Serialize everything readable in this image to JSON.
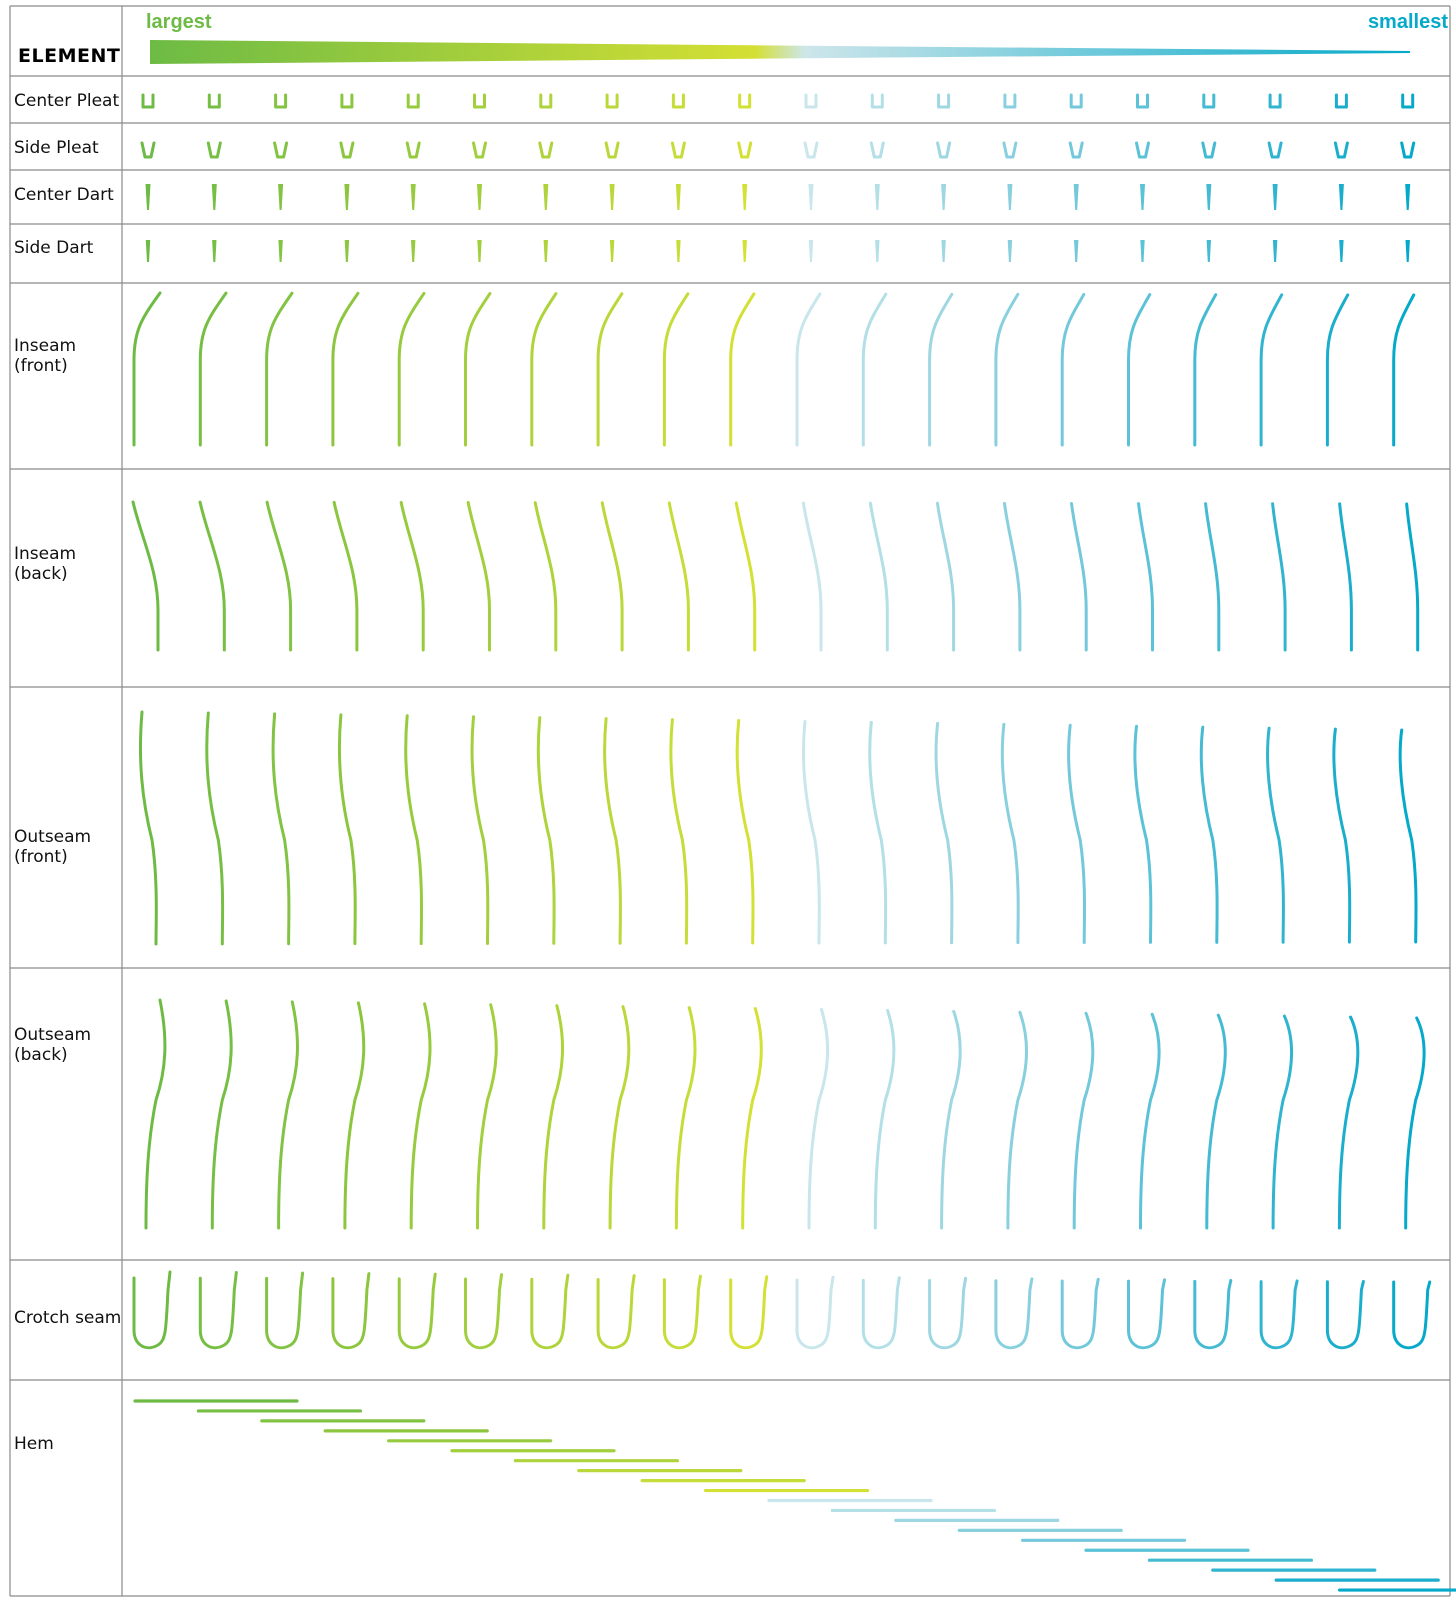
{
  "header": {
    "element_label": "ELEMENT",
    "largest_label": "largest",
    "smallest_label": "smallest"
  },
  "colors": {
    "largest": "#6dbb45",
    "smallest": "#05a9c9",
    "gradient_stops": [
      "#6dbb45",
      "#8cc63f",
      "#b6d63a",
      "#d4df33",
      "#cde6ea",
      "#a9dbe4",
      "#83ccdc",
      "#55bfd6",
      "#2cb3d2",
      "#05a9c9"
    ],
    "size_colors": [
      "#6dbb45",
      "#77bf44",
      "#82c343",
      "#8cc63f",
      "#97cb3e",
      "#a2cf3d",
      "#aed33b",
      "#bad83a",
      "#c6dc38",
      "#d3e034",
      "#c8e6eb",
      "#b3dfe7",
      "#9ed7e2",
      "#89d0de",
      "#73c9db",
      "#5cc2d7",
      "#45bbd3",
      "#30b4d0",
      "#1baecc",
      "#05a9c9"
    ]
  },
  "size_count": 20,
  "rows": [
    {
      "key": "center-pleat",
      "label_lines": [
        "Center Pleat"
      ],
      "glyph": "pleat-u"
    },
    {
      "key": "side-pleat",
      "label_lines": [
        "Side Pleat"
      ],
      "glyph": "pleat-v"
    },
    {
      "key": "center-dart",
      "label_lines": [
        "Center Dart"
      ],
      "glyph": "dart"
    },
    {
      "key": "side-dart",
      "label_lines": [
        "Side Dart"
      ],
      "glyph": "dart-small"
    },
    {
      "key": "inseam-front",
      "label_lines": [
        "Inseam",
        "(front)"
      ],
      "glyph": "inseam-front"
    },
    {
      "key": "inseam-back",
      "label_lines": [
        "Inseam",
        "(back)"
      ],
      "glyph": "inseam-back"
    },
    {
      "key": "outseam-front",
      "label_lines": [
        "Outseam",
        "(front)"
      ],
      "glyph": "outseam-front"
    },
    {
      "key": "outseam-back",
      "label_lines": [
        " Outseam",
        " (back)"
      ],
      "glyph": "outseam-back"
    },
    {
      "key": "crotch-seam",
      "label_lines": [
        "Crotch seam"
      ],
      "glyph": "crotch"
    },
    {
      "key": "hem",
      "label_lines": [
        "Hem"
      ],
      "glyph": "hem"
    }
  ]
}
